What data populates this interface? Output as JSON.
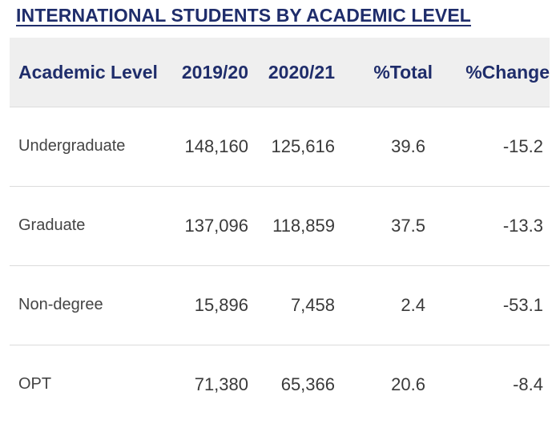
{
  "title": "INTERNATIONAL STUDENTS BY ACADEMIC LEVEL",
  "chart_data": {
    "type": "table",
    "title": "INTERNATIONAL STUDENTS BY ACADEMIC LEVEL",
    "columns": [
      "Academic Level",
      "2019/20",
      "2020/21",
      "%Total",
      "%Change"
    ],
    "rows": [
      {
        "level": "Undergraduate",
        "y2019_20": "148,160",
        "y2020_21": "125,616",
        "pct_total": "39.6",
        "pct_change": "-15.2"
      },
      {
        "level": "Graduate",
        "y2019_20": "137,096",
        "y2020_21": "118,859",
        "pct_total": "37.5",
        "pct_change": "-13.3"
      },
      {
        "level": "Non-degree",
        "y2019_20": "15,896",
        "y2020_21": "7,458",
        "pct_total": "2.4",
        "pct_change": "-53.1"
      },
      {
        "level": "OPT",
        "y2019_20": "71,380",
        "y2020_21": "65,366",
        "pct_total": "20.6",
        "pct_change": "-8.4"
      }
    ]
  },
  "colors": {
    "header_text": "#1f2d6b",
    "header_bg": "#efefef",
    "body_text": "#3a3a3a",
    "row_divider": "#dcdcdc"
  }
}
